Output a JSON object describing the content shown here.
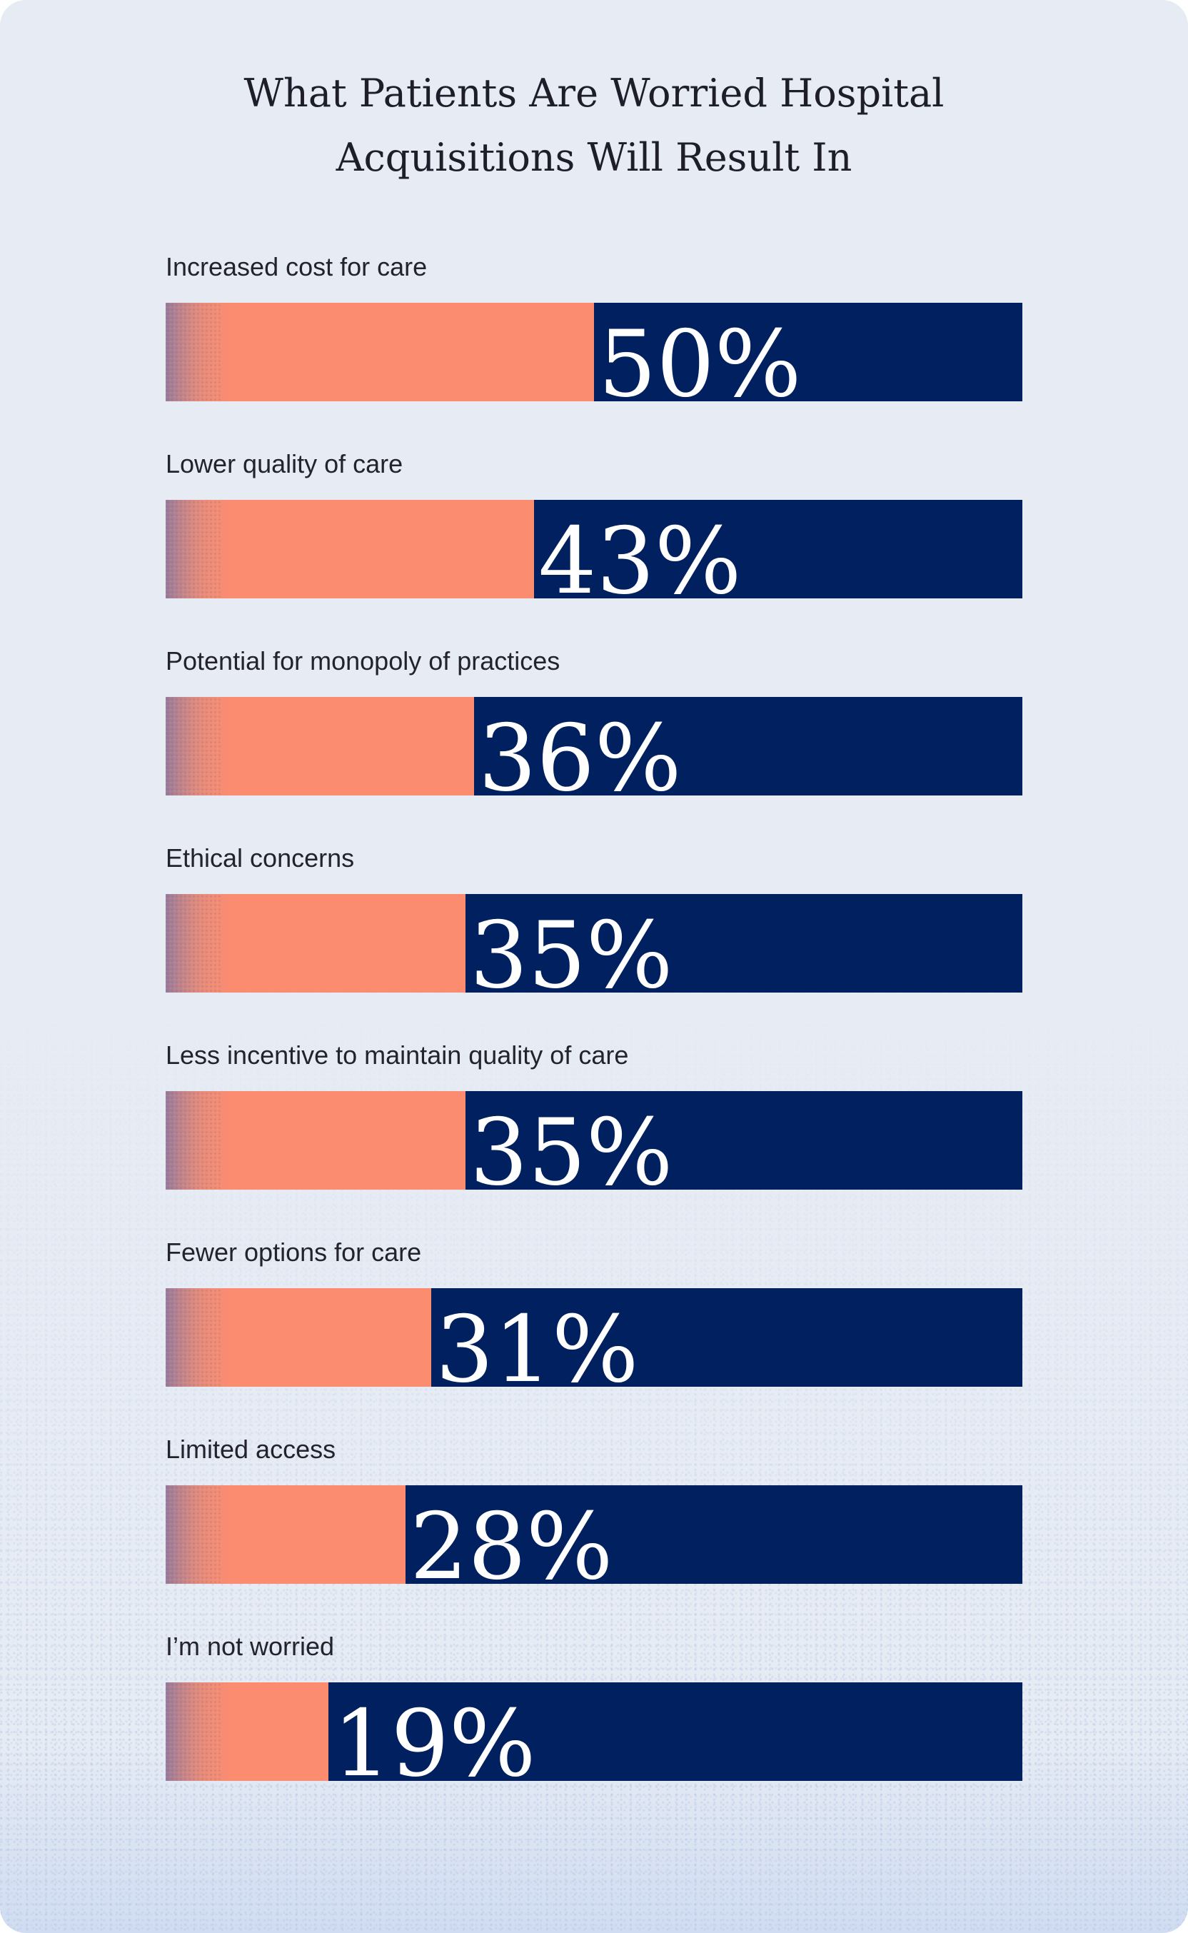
{
  "chart_data": {
    "type": "bar",
    "orientation": "horizontal",
    "title": "What Patients Are Worried Hospital Acquisitions Will Result In",
    "title_lines": [
      "What Patients Are Worried Hospital",
      "Acquisitions Will Result In"
    ],
    "categories": [
      "Increased cost for care",
      "Lower quality of care",
      "Potential for monopoly of practices",
      "Ethical concerns",
      "Less incentive to maintain quality of care",
      "Fewer options for care",
      "Limited access",
      "I’m not worried"
    ],
    "values": [
      50,
      43,
      36,
      35,
      35,
      31,
      28,
      19
    ],
    "value_labels": [
      "50%",
      "43%",
      "36%",
      "35%",
      "35%",
      "31%",
      "28%",
      "19%"
    ],
    "xlim": [
      0,
      100
    ],
    "unit": "%",
    "grid": false,
    "colors": {
      "fill": "#fc8c70",
      "remainder": "#002060",
      "background": "#e6ebf4",
      "label_text": "#23232d",
      "value_text": "#ffffff"
    }
  }
}
